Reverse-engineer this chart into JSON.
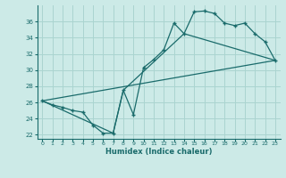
{
  "xlabel": "Humidex (Indice chaleur)",
  "bg_color": "#cceae7",
  "grid_color": "#aad4d0",
  "line_color": "#1a6b6b",
  "xlim": [
    -0.5,
    23.5
  ],
  "ylim": [
    21.5,
    38.0
  ],
  "xticks": [
    0,
    1,
    2,
    3,
    4,
    5,
    6,
    7,
    8,
    9,
    10,
    11,
    12,
    13,
    14,
    15,
    16,
    17,
    18,
    19,
    20,
    21,
    22,
    23
  ],
  "yticks": [
    22,
    24,
    26,
    28,
    30,
    32,
    34,
    36
  ],
  "curve1_x": [
    0,
    1,
    2,
    3,
    4,
    5,
    6,
    7,
    8,
    9,
    10,
    11,
    12,
    13,
    14,
    15,
    16,
    17,
    18,
    19,
    20,
    21,
    22,
    23
  ],
  "curve1_y": [
    26.2,
    25.7,
    25.4,
    25.0,
    24.8,
    23.2,
    22.2,
    22.2,
    27.5,
    24.5,
    30.3,
    31.3,
    32.5,
    35.8,
    34.5,
    37.2,
    37.3,
    37.0,
    35.8,
    35.5,
    35.8,
    34.5,
    33.5,
    31.2
  ],
  "line2_x": [
    0,
    23
  ],
  "line2_y": [
    26.2,
    31.2
  ],
  "line3_x": [
    0,
    7,
    8,
    14,
    23
  ],
  "line3_y": [
    26.2,
    22.2,
    27.5,
    34.5,
    31.2
  ]
}
